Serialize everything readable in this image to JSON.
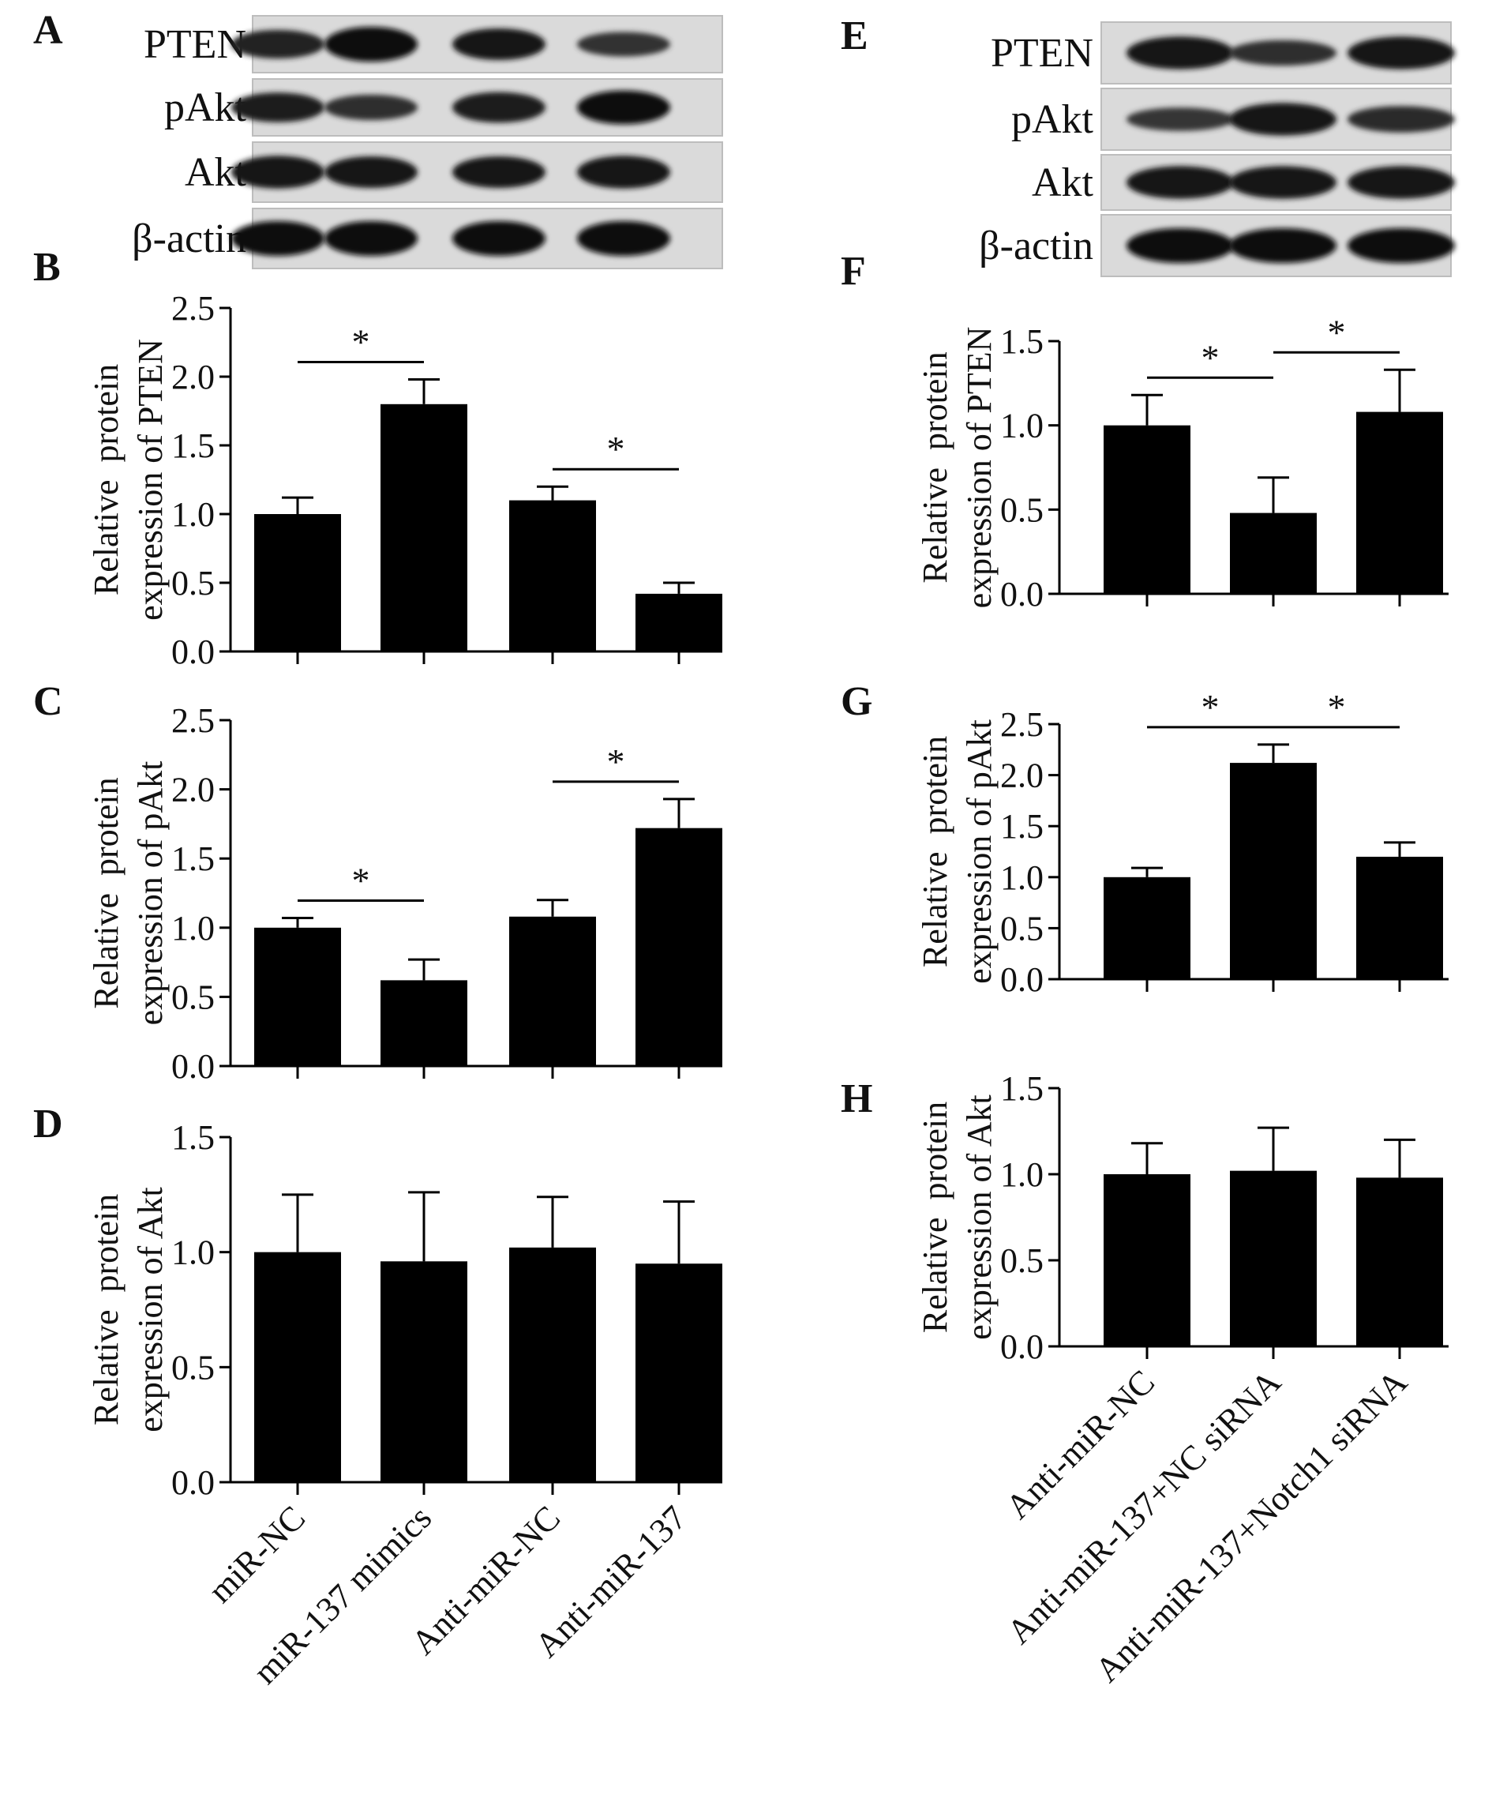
{
  "chart_data": [
    {
      "panel": "A",
      "type": "blot",
      "lanes": [
        "miR-NC",
        "miR-137 mimics",
        "Anti-miR-NC",
        "Anti-miR-137"
      ],
      "rows": [
        {
          "label": "PTEN",
          "intensity": [
            0.7,
            1.0,
            0.85,
            0.5
          ]
        },
        {
          "label": "pAkt",
          "intensity": [
            0.75,
            0.55,
            0.8,
            0.95
          ]
        },
        {
          "label": "Akt",
          "intensity": [
            0.9,
            0.85,
            0.85,
            0.9
          ]
        },
        {
          "label": "β-actin",
          "intensity": [
            1.0,
            1.0,
            1.0,
            1.0
          ]
        }
      ]
    },
    {
      "panel": "B",
      "type": "bar",
      "categories": [
        "miR-NC",
        "miR-137 mimics",
        "Anti-miR-NC",
        "Anti-miR-137"
      ],
      "values": [
        1.0,
        1.8,
        1.1,
        0.42
      ],
      "errors": [
        0.12,
        0.18,
        0.1,
        0.08
      ],
      "ylabel": [
        "Relative  protein",
        "expression of PTEN"
      ],
      "ylim": [
        0,
        2.5
      ],
      "ticks": [
        "0.0",
        "0.5",
        "1.0",
        "1.5",
        "2.0",
        "2.5"
      ],
      "significance": [
        {
          "from": 0,
          "to": 1,
          "label": "*"
        },
        {
          "from": 2,
          "to": 3,
          "label": "*"
        }
      ]
    },
    {
      "panel": "C",
      "type": "bar",
      "categories": [
        "miR-NC",
        "miR-137 mimics",
        "Anti-miR-NC",
        "Anti-miR-137"
      ],
      "values": [
        1.0,
        0.62,
        1.08,
        1.72
      ],
      "errors": [
        0.07,
        0.15,
        0.12,
        0.21
      ],
      "ylabel": [
        "Relative  protein",
        "expression of pAkt"
      ],
      "ylim": [
        0,
        2.5
      ],
      "ticks": [
        "0.0",
        "0.5",
        "1.0",
        "1.5",
        "2.0",
        "2.5"
      ],
      "significance": [
        {
          "from": 0,
          "to": 1,
          "label": "*"
        },
        {
          "from": 2,
          "to": 3,
          "label": "*"
        }
      ]
    },
    {
      "panel": "D",
      "type": "bar",
      "categories": [
        "miR-NC",
        "miR-137 mimics",
        "Anti-miR-NC",
        "Anti-miR-137"
      ],
      "values": [
        1.0,
        0.96,
        1.02,
        0.95
      ],
      "errors": [
        0.25,
        0.3,
        0.22,
        0.27
      ],
      "ylabel": [
        "Relative  protein",
        "expression of Akt"
      ],
      "ylim": [
        0,
        1.5
      ],
      "ticks": [
        "0.0",
        "0.5",
        "1.0",
        "1.5"
      ],
      "significance": []
    },
    {
      "panel": "E",
      "type": "blot",
      "lanes": [
        "Anti-miR-NC",
        "Anti-miR-137+NC siRNA",
        "Anti-miR-137+Notch1 siRNA"
      ],
      "rows": [
        {
          "label": "PTEN",
          "intensity": [
            0.9,
            0.55,
            0.9
          ]
        },
        {
          "label": "pAkt",
          "intensity": [
            0.45,
            0.9,
            0.6
          ]
        },
        {
          "label": "Akt",
          "intensity": [
            0.9,
            0.9,
            0.9
          ]
        },
        {
          "label": "β-actin",
          "intensity": [
            1.0,
            1.0,
            1.0
          ]
        }
      ]
    },
    {
      "panel": "F",
      "type": "bar",
      "categories": [
        "Anti-miR-NC",
        "Anti-miR-137+NC siRNA",
        "Anti-miR-137+Notch1 siRNA"
      ],
      "values": [
        1.0,
        0.48,
        1.08
      ],
      "errors": [
        0.18,
        0.21,
        0.25
      ],
      "ylabel": [
        "Relative  protein",
        "expression of PTEN"
      ],
      "ylim": [
        0,
        1.5
      ],
      "ticks": [
        "0.0",
        "0.5",
        "1.0",
        "1.5"
      ],
      "significance": [
        {
          "from": 0,
          "to": 1,
          "label": "*"
        },
        {
          "from": 1,
          "to": 2,
          "label": "*"
        }
      ]
    },
    {
      "panel": "G",
      "type": "bar",
      "categories": [
        "Anti-miR-NC",
        "Anti-miR-137+NC siRNA",
        "Anti-miR-137+Notch1 siRNA"
      ],
      "values": [
        1.0,
        2.12,
        1.2
      ],
      "errors": [
        0.09,
        0.18,
        0.14
      ],
      "ylabel": [
        "Relative  protein",
        "expression of pAkt"
      ],
      "ylim": [
        0,
        2.5
      ],
      "ticks": [
        "0.0",
        "0.5",
        "1.0",
        "1.5",
        "2.0",
        "2.5"
      ],
      "significance": [
        {
          "from": 0,
          "to": 1,
          "label": "*"
        },
        {
          "from": 1,
          "to": 2,
          "label": "*"
        }
      ]
    },
    {
      "panel": "H",
      "type": "bar",
      "categories": [
        "Anti-miR-NC",
        "Anti-miR-137+NC siRNA",
        "Anti-miR-137+Notch1 siRNA"
      ],
      "values": [
        1.0,
        1.02,
        0.98
      ],
      "errors": [
        0.18,
        0.25,
        0.22
      ],
      "ylabel": [
        "Relative  protein",
        "expression of Akt"
      ],
      "ylim": [
        0,
        1.5
      ],
      "ticks": [
        "0.0",
        "0.5",
        "1.0",
        "1.5"
      ],
      "significance": []
    }
  ]
}
